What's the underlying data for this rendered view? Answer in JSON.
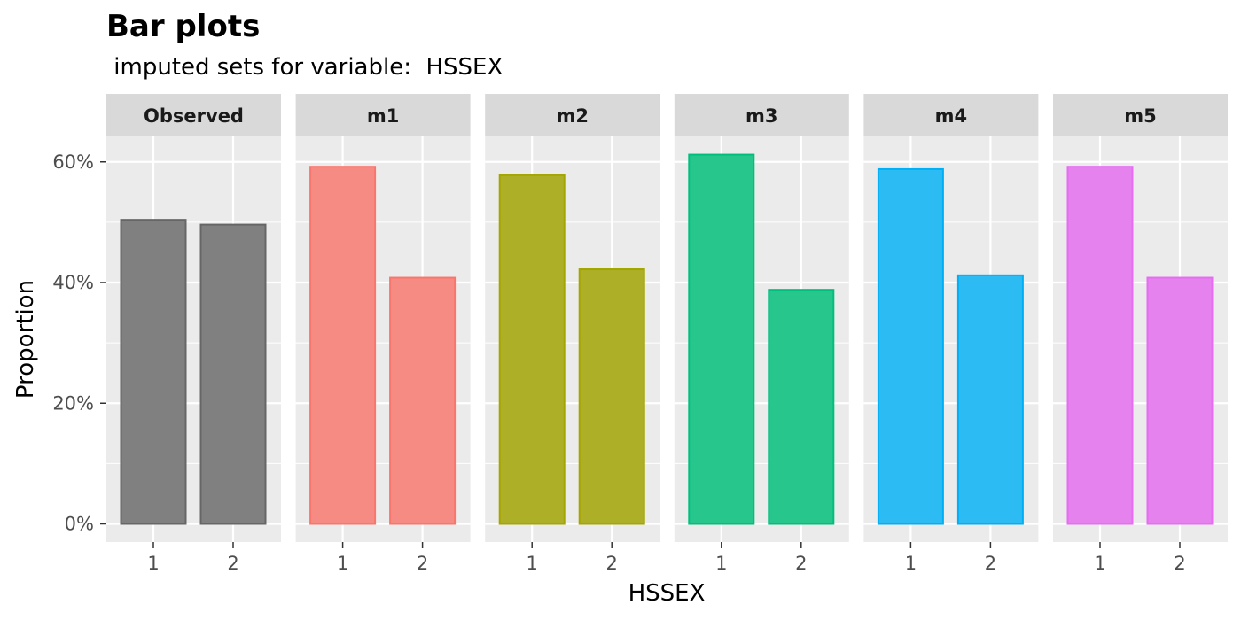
{
  "chart_data": {
    "type": "bar",
    "title": "Bar plots",
    "subtitle": " imputed sets for variable:  HSSEX",
    "xlabel": "HSSEX",
    "ylabel": "Proportion",
    "categories": [
      "1",
      "2"
    ],
    "ylim": [
      0,
      0.7
    ],
    "yticks": [
      0,
      0.2,
      0.4,
      0.6
    ],
    "ytick_labels": [
      "0%",
      "20%",
      "40%",
      "60%"
    ],
    "grid": true,
    "facets": [
      {
        "name": "Observed",
        "values": [
          0.504,
          0.496
        ],
        "color": "#808080",
        "stroke": "#666666"
      },
      {
        "name": "m1",
        "values": [
          0.592,
          0.408
        ],
        "color": "#F58B83",
        "stroke": "#F8766D"
      },
      {
        "name": "m2",
        "values": [
          0.578,
          0.422
        ],
        "color": "#ADAF27",
        "stroke": "#A3A500"
      },
      {
        "name": "m3",
        "values": [
          0.612,
          0.388
        ],
        "color": "#27C68C",
        "stroke": "#00BF7D"
      },
      {
        "name": "m4",
        "values": [
          0.588,
          0.412
        ],
        "color": "#2DBBF3",
        "stroke": "#00B0F6"
      },
      {
        "name": "m5",
        "values": [
          0.592,
          0.408
        ],
        "color": "#E582EE",
        "stroke": "#E76BF3"
      }
    ]
  }
}
